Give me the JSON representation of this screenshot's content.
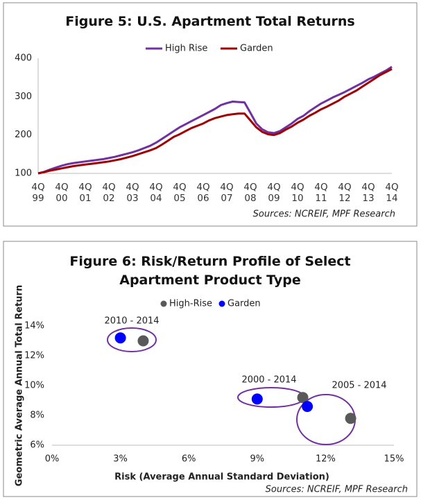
{
  "chart_data": [
    {
      "type": "line",
      "title": "Figure 5: U.S. Apartment Total Returns",
      "source": "Sources: NCREIF, MPF Research",
      "categories": [
        "4Q\n99",
        null,
        null,
        null,
        "4Q\n00",
        null,
        null,
        null,
        "4Q\n01",
        null,
        null,
        null,
        "4Q\n02",
        null,
        null,
        null,
        "4Q\n03",
        null,
        null,
        null,
        "4Q\n04",
        null,
        null,
        null,
        "4Q\n05",
        null,
        null,
        null,
        "4Q\n06",
        null,
        null,
        null,
        "4Q\n07",
        null,
        null,
        null,
        "4Q\n08",
        null,
        null,
        null,
        "4Q\n09",
        null,
        null,
        null,
        "4Q\n10",
        null,
        null,
        null,
        "4Q\n11",
        null,
        null,
        null,
        "4Q\n12",
        null,
        null,
        null,
        "4Q\n13",
        null,
        null,
        null,
        "4Q\n14"
      ],
      "series": [
        {
          "name": "High Rise",
          "color": "#7030a0",
          "values": [
            100,
            104,
            110,
            115,
            120,
            124,
            127,
            129,
            131,
            133,
            135,
            137,
            140,
            143,
            147,
            151,
            155,
            160,
            166,
            172,
            180,
            190,
            200,
            210,
            220,
            228,
            236,
            244,
            252,
            260,
            268,
            278,
            283,
            287,
            286,
            285,
            258,
            230,
            215,
            207,
            205,
            210,
            220,
            230,
            242,
            250,
            262,
            272,
            282,
            290,
            298,
            305,
            312,
            320,
            328,
            336,
            345,
            352,
            360,
            368,
            378
          ]
        },
        {
          "name": "Garden",
          "color": "#a00000",
          "values": [
            100,
            103,
            107,
            110,
            113,
            116,
            119,
            121,
            123,
            125,
            127,
            129,
            131,
            134,
            137,
            141,
            145,
            150,
            155,
            160,
            166,
            175,
            185,
            195,
            202,
            210,
            218,
            224,
            230,
            238,
            244,
            248,
            252,
            254,
            256,
            256,
            238,
            220,
            208,
            202,
            200,
            205,
            214,
            222,
            232,
            240,
            250,
            258,
            267,
            274,
            282,
            290,
            300,
            308,
            316,
            326,
            336,
            346,
            356,
            364,
            372
          ]
        }
      ],
      "ylim": [
        100,
        400
      ],
      "yticks": [
        100,
        200,
        300,
        400
      ],
      "grid": false,
      "legend": "top"
    },
    {
      "type": "scatter",
      "title": "Figure 6: Risk/Return Profile of Select\nApartment Product Type",
      "source": "Sources: NCREIF, MPF Research",
      "x_label": "Risk (Average Annual Standard Deviation)",
      "y_label": "Geometric Average Annual Total Return",
      "annotations": [
        "2010 - 2014",
        "2000 - 2014",
        "2005 - 2014"
      ],
      "series": [
        {
          "name": "High-Rise",
          "color": "#595959",
          "x": [
            4,
            11,
            13.1
          ],
          "values": [
            13,
            9.2,
            7.8
          ]
        },
        {
          "name": "Garden",
          "color": "#0000ff",
          "x": [
            3,
            9,
            11.2
          ],
          "values": [
            13.2,
            9.1,
            8.6
          ]
        }
      ],
      "xlim": [
        0,
        15
      ],
      "xticks": [
        {
          "value": 0,
          "label": "0%"
        },
        {
          "value": 3,
          "label": "3%"
        },
        {
          "value": 6,
          "label": "6%"
        },
        {
          "value": 9,
          "label": "9%"
        },
        {
          "value": 12,
          "label": "12%"
        },
        {
          "value": 15,
          "label": "15%"
        }
      ],
      "ylim": [
        6,
        14
      ],
      "yticks": [
        {
          "value": 6,
          "label": "6%"
        },
        {
          "value": 8,
          "label": "8%"
        },
        {
          "value": 10,
          "label": "10%"
        },
        {
          "value": 12,
          "label": "12%"
        },
        {
          "value": 14,
          "label": "14%"
        }
      ],
      "grid": false,
      "legend": "top"
    }
  ]
}
